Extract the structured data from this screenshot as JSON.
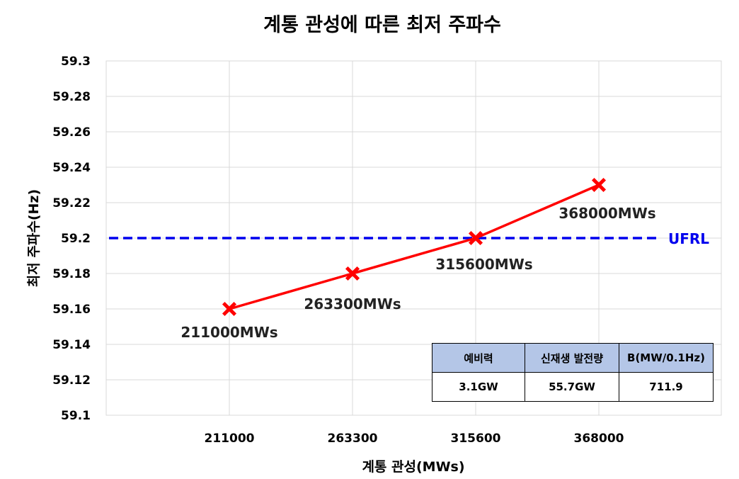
{
  "chart_data": {
    "type": "line",
    "title": "계통 관성에 따른 최저 주파수",
    "xlabel": "계통 관성(MWs)",
    "ylabel": "최저 주파수(Hz)",
    "ylim": [
      59.1,
      59.3
    ],
    "y_ticks": [
      "59.1",
      "59.12",
      "59.14",
      "59.16",
      "59.18",
      "59.2",
      "59.22",
      "59.24",
      "59.26",
      "59.28",
      "59.3"
    ],
    "categories": [
      "211000",
      "263300",
      "315600",
      "368000"
    ],
    "series": [
      {
        "values": [
          59.16,
          59.18,
          59.2,
          59.23
        ],
        "point_labels": [
          "211000MWs",
          "263300MWs",
          "315600MWs",
          "368000MWs"
        ],
        "color": "#ff0000",
        "marker": "x"
      }
    ],
    "reference_line": {
      "label": "UFRL",
      "value": 59.2,
      "color": "#0000ee",
      "style": "dashed"
    },
    "grid": true,
    "table": {
      "headers": [
        "예비력",
        "신재생 발전량",
        "B(MW/0.1Hz)"
      ],
      "values": [
        "3.1GW",
        "55.7GW",
        "711.9"
      ]
    }
  }
}
